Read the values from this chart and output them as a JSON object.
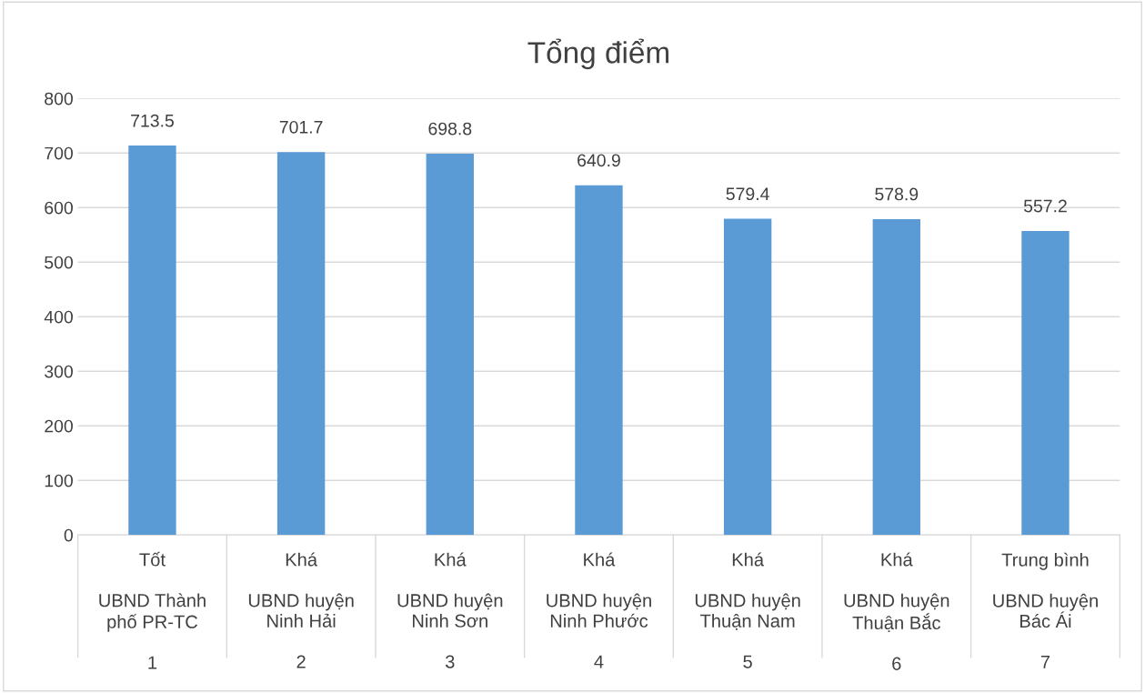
{
  "chart_data": {
    "type": "bar",
    "title": "Tổng điểm",
    "categories": [
      "Tốt\n\nUBND Thành\nphố PR-TC\n\n1",
      "Khá\n\nUBND huyện\nNinh Hải\n\n2",
      "Khá\n\nUBND huyện\nNinh Sơn\n\n3",
      "Khá\n\nUBND huyện\nNinh Phước\n\n4",
      "Khá\n\nUBND huyện\nThuận Nam\n\n5",
      "Khá\n\nUBND huyện\nThuận Bắc\n\n6",
      "Trung bình\n\nUBND huyện\nBác Ái\n\n7"
    ],
    "values": [
      713.5,
      701.7,
      698.8,
      640.9,
      579.4,
      578.9,
      557.2
    ],
    "color": "#5b9bd5",
    "ylim": [
      0,
      800
    ],
    "yticks": [
      0,
      100,
      200,
      300,
      400,
      500,
      600,
      700,
      800
    ],
    "grid": "y",
    "data_labels": true,
    "legend": false
  }
}
